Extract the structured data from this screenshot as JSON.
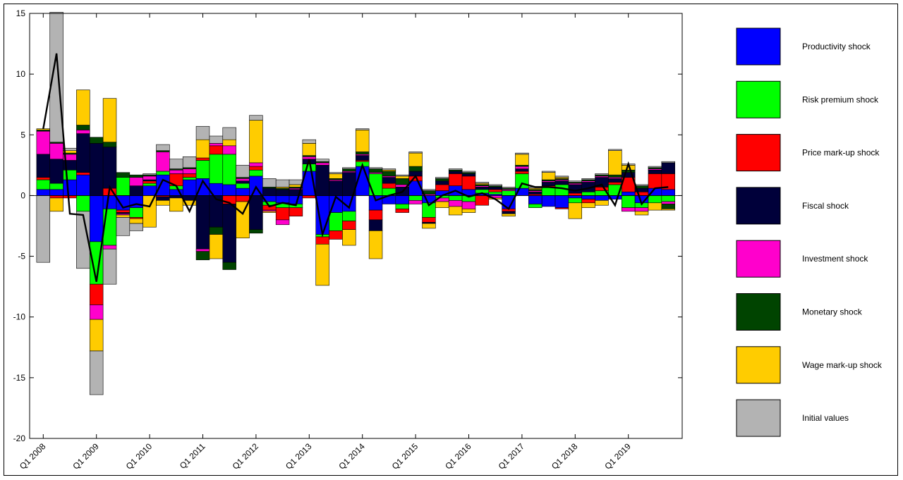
{
  "chart_data": {
    "type": "bar",
    "stacked": true,
    "title": "",
    "xlabel": "",
    "ylabel": "",
    "ylim": [
      -20,
      15
    ],
    "yticks": [
      15,
      10,
      5,
      0,
      -5,
      -10,
      -15,
      -20
    ],
    "xtick_labels": [
      "Q1 2008",
      "Q1 2009",
      "Q1 2010",
      "Q1 2011",
      "Q1 2012",
      "Q1 2013",
      "Q1 2014",
      "Q1 2015",
      "Q1 2016",
      "Q1 2017",
      "Q1 2018",
      "Q1 2019"
    ],
    "xtick_period_index": [
      0,
      4,
      8,
      12,
      16,
      20,
      24,
      28,
      32,
      36,
      40,
      44
    ],
    "periods": 48,
    "grid": false,
    "legend_position": "right",
    "series": [
      {
        "name": "Productivity shock",
        "color": "#0000ff",
        "values": [
          0.5,
          0.5,
          1.3,
          1.7,
          -3.8,
          -1.1,
          -1.2,
          -1.0,
          0.8,
          1.7,
          0.5,
          1.3,
          1.4,
          1.0,
          0.9,
          0.6,
          1.6,
          -0.5,
          -0.6,
          -0.7,
          2.0,
          -3.2,
          -1.4,
          -1.3,
          2.4,
          -1.2,
          -0.7,
          -0.7,
          1.2,
          -0.6,
          0.4,
          0.8,
          0.5,
          0.2,
          0.1,
          -1.1,
          0.6,
          -0.7,
          -0.9,
          -1.0,
          -0.2,
          -0.3,
          -0.4,
          -0.3,
          0.3,
          -0.6,
          0.6,
          0.5
        ]
      },
      {
        "name": "Risk premium shock",
        "color": "#00ff00",
        "values": [
          0.8,
          0.5,
          0.8,
          -1.3,
          -3.5,
          -3.0,
          1.5,
          -0.8,
          0.2,
          0.3,
          0.3,
          0.2,
          1.5,
          2.4,
          2.5,
          0.4,
          0.5,
          -0.3,
          -0.4,
          -0.3,
          0.6,
          -0.2,
          -1.5,
          -0.8,
          0.4,
          1.8,
          0.6,
          -0.4,
          -0.4,
          -1.2,
          -0.2,
          -0.4,
          -0.5,
          0.3,
          0.2,
          0.4,
          1.2,
          -0.3,
          0.7,
          0.9,
          -0.4,
          0.3,
          0.4,
          0.9,
          -1.0,
          -0.4,
          -0.6,
          -0.5
        ]
      },
      {
        "name": "Price mark-up shock",
        "color": "#ff0000",
        "values": [
          0.2,
          -0.2,
          -0.2,
          0.2,
          -1.7,
          0.6,
          -0.2,
          -0.1,
          0.2,
          -0.1,
          1.0,
          0.3,
          0.2,
          0.7,
          -0.7,
          -0.5,
          0.3,
          -0.4,
          -1.0,
          -0.7,
          -0.2,
          -0.6,
          -0.7,
          -0.7,
          0.1,
          -0.8,
          0.4,
          -0.3,
          0.4,
          -0.4,
          0.5,
          1.0,
          1.1,
          -0.8,
          0.2,
          -0.2,
          0.2,
          0.1,
          0.1,
          -0.1,
          0.2,
          -0.3,
          0.3,
          0.2,
          1.2,
          0.3,
          1.2,
          1.3
        ]
      },
      {
        "name": "Fiscal shock",
        "color": "#00003a",
        "values": [
          1.9,
          2.0,
          0.8,
          3.2,
          4.3,
          3.4,
          -0.1,
          0.8,
          0.1,
          -0.3,
          -0.2,
          -0.4,
          -4.4,
          -2.6,
          -4.8,
          0.2,
          -2.8,
          0.6,
          0.5,
          0.5,
          0.4,
          2.5,
          1.2,
          1.9,
          0.4,
          -0.9,
          0.5,
          0.7,
          0.4,
          -0.1,
          0.3,
          0.2,
          0.2,
          0.2,
          0.2,
          -0.2,
          0.2,
          0.2,
          0.3,
          0.3,
          0.7,
          0.8,
          0.8,
          0.3,
          0.4,
          0.3,
          0.3,
          0.9
        ]
      },
      {
        "name": "Investment shock",
        "color": "#ff00cc",
        "values": [
          1.9,
          1.3,
          0.5,
          0.3,
          -1.2,
          -0.3,
          -0.1,
          0.7,
          0.3,
          1.6,
          0.3,
          0.4,
          -0.2,
          0.2,
          0.7,
          0.2,
          0.3,
          -0.1,
          -0.4,
          0.1,
          0.2,
          0.2,
          0.1,
          0.1,
          0.1,
          0.1,
          0.1,
          0.2,
          -0.3,
          0.1,
          -0.3,
          -0.5,
          -0.6,
          0.1,
          -0.2,
          0.1,
          0.2,
          0.1,
          0.1,
          0.1,
          0.1,
          0.1,
          0.1,
          0.1,
          -0.3,
          -0.3,
          0.1,
          -0.2
        ]
      },
      {
        "name": "Monetary shock",
        "color": "#004400",
        "values": [
          0.1,
          0.1,
          0.1,
          0.4,
          0.5,
          0.4,
          0.4,
          0.2,
          0.1,
          0.1,
          0.1,
          0.1,
          -0.7,
          -0.6,
          -0.6,
          0.1,
          -0.3,
          0.1,
          0.1,
          0.1,
          0.1,
          0.1,
          0.1,
          0.2,
          0.2,
          0.3,
          0.4,
          0.5,
          0.4,
          0.3,
          0.2,
          0.1,
          0.1,
          0.1,
          0.1,
          0.1,
          0.1,
          0.1,
          0.1,
          0.1,
          0.1,
          0.1,
          0.1,
          0.2,
          0.2,
          0.2,
          0.1,
          -0.4
        ]
      },
      {
        "name": "Wage mark-up shock",
        "color": "#ffcc00",
        "values": [
          0.1,
          -1.1,
          0.2,
          2.9,
          -2.6,
          3.6,
          -0.2,
          -0.4,
          -2.6,
          -0.4,
          -1.1,
          -0.4,
          1.5,
          -2.0,
          0.5,
          -3.0,
          3.5,
          -0.1,
          0.1,
          0.2,
          1.0,
          -3.4,
          0.4,
          -1.3,
          1.8,
          -2.3,
          0.1,
          0.2,
          1.1,
          -0.4,
          -0.5,
          -0.7,
          -0.3,
          0.1,
          -0.1,
          -0.2,
          0.9,
          0.1,
          0.6,
          0.1,
          -1.3,
          -0.4,
          -0.4,
          2.0,
          0.4,
          -0.3,
          -0.6,
          -0.1
        ]
      },
      {
        "name": "Initial values",
        "color": "#b3b3b3",
        "values": [
          -5.5,
          10.7,
          0.2,
          -4.7,
          -3.6,
          -2.9,
          -1.5,
          -0.6,
          0.1,
          0.5,
          0.8,
          0.9,
          1.1,
          0.6,
          1.0,
          1.0,
          0.4,
          0.7,
          0.6,
          0.4,
          0.3,
          0.2,
          0.1,
          0.1,
          0.1,
          0.1,
          0.1,
          0.1,
          0.1,
          0.1,
          0.1,
          0.1,
          0.1,
          0.1,
          0.1,
          0.1,
          0.1,
          0.1,
          0.1,
          0.1,
          0.1,
          0.1,
          0.1,
          0.1,
          0.1,
          0.1,
          0.1,
          0.1
        ]
      }
    ],
    "total_line": {
      "name": "",
      "color": "#000000",
      "values": [
        5.5,
        11.7,
        -1.5,
        -1.6,
        -7.1,
        0.7,
        -1.0,
        -0.7,
        -0.9,
        1.3,
        0.8,
        -1.3,
        1.2,
        -0.3,
        -0.6,
        -1.5,
        0.7,
        -0.9,
        -0.6,
        -0.8,
        3.0,
        -3.2,
        -0.1,
        -1.0,
        2.5,
        -0.4,
        0.0,
        0.3,
        1.6,
        -0.8,
        0.0,
        0.4,
        -0.1,
        0.2,
        -0.3,
        -1.1,
        1.0,
        0.7,
        0.7,
        0.6,
        0.4,
        0.6,
        0.9,
        -0.8,
        2.6,
        -0.7,
        0.6,
        0.7
      ]
    }
  }
}
